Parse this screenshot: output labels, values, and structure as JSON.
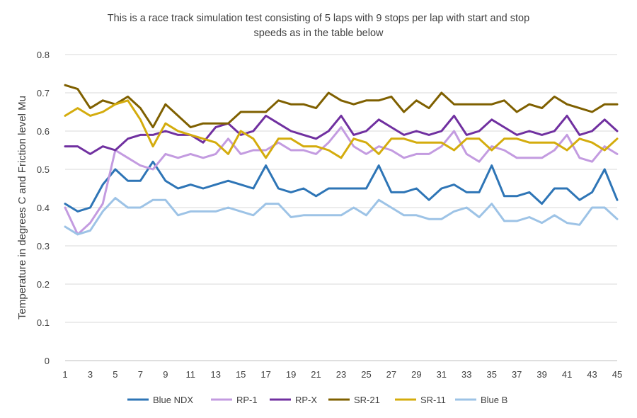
{
  "chart_data": {
    "type": "line",
    "title_lines": [
      "This is a race track simulation test consisting of 5 laps with 9 stops per lap with start and stop",
      "speeds as in the table below"
    ],
    "xlabel": "",
    "ylabel": "Temperature in degrees C and Friction level Mu",
    "ylim": [
      0,
      0.8
    ],
    "yticks": [
      "0",
      "0.1",
      "0.2",
      "0.3",
      "0.4",
      "0.5",
      "0.6",
      "0.7",
      "0.8"
    ],
    "x_range": [
      1,
      45
    ],
    "xticks": [
      "1",
      "3",
      "5",
      "7",
      "9",
      "11",
      "13",
      "15",
      "17",
      "19",
      "21",
      "23",
      "25",
      "27",
      "29",
      "31",
      "33",
      "35",
      "37",
      "39",
      "41",
      "43",
      "45"
    ],
    "grid": true,
    "legend_position": "bottom",
    "series": [
      {
        "name": "Blue NDX",
        "color": "#2E75B6",
        "values": [
          0.41,
          0.39,
          0.4,
          0.46,
          0.5,
          0.47,
          0.47,
          0.52,
          0.47,
          0.45,
          0.46,
          0.45,
          0.46,
          0.47,
          0.46,
          0.45,
          0.51,
          0.45,
          0.44,
          0.45,
          0.43,
          0.45,
          0.45,
          0.45,
          0.45,
          0.51,
          0.44,
          0.44,
          0.45,
          0.42,
          0.45,
          0.46,
          0.44,
          0.44,
          0.51,
          0.43,
          0.43,
          0.44,
          0.41,
          0.45,
          0.45,
          0.42,
          0.44,
          0.5,
          0.42
        ]
      },
      {
        "name": "RP-1",
        "color": "#C39BE0",
        "values": [
          0.4,
          0.33,
          0.36,
          0.41,
          0.55,
          0.53,
          0.51,
          0.5,
          0.54,
          0.53,
          0.54,
          0.53,
          0.54,
          0.58,
          0.54,
          0.55,
          0.55,
          0.57,
          0.55,
          0.55,
          0.54,
          0.57,
          0.61,
          0.56,
          0.54,
          0.56,
          0.55,
          0.53,
          0.54,
          0.54,
          0.56,
          0.6,
          0.54,
          0.52,
          0.56,
          0.55,
          0.53,
          0.53,
          0.53,
          0.55,
          0.59,
          0.53,
          0.52,
          0.56,
          0.54
        ]
      },
      {
        "name": "RP-X",
        "color": "#7030A0",
        "values": [
          0.56,
          0.56,
          0.54,
          0.56,
          0.55,
          0.58,
          0.59,
          0.59,
          0.6,
          0.59,
          0.59,
          0.57,
          0.61,
          0.62,
          0.59,
          0.6,
          0.64,
          0.62,
          0.6,
          0.59,
          0.58,
          0.6,
          0.64,
          0.59,
          0.6,
          0.63,
          0.61,
          0.59,
          0.6,
          0.59,
          0.6,
          0.64,
          0.59,
          0.6,
          0.63,
          0.61,
          0.59,
          0.6,
          0.59,
          0.6,
          0.64,
          0.59,
          0.6,
          0.63,
          0.6
        ]
      },
      {
        "name": "SR-21",
        "color": "#7F6000",
        "values": [
          0.72,
          0.71,
          0.66,
          0.68,
          0.67,
          0.69,
          0.66,
          0.61,
          0.67,
          0.64,
          0.61,
          0.62,
          0.62,
          0.62,
          0.65,
          0.65,
          0.65,
          0.68,
          0.67,
          0.67,
          0.66,
          0.7,
          0.68,
          0.67,
          0.68,
          0.68,
          0.69,
          0.65,
          0.68,
          0.66,
          0.7,
          0.67,
          0.67,
          0.67,
          0.67,
          0.68,
          0.65,
          0.67,
          0.66,
          0.69,
          0.67,
          0.66,
          0.65,
          0.67,
          0.67
        ]
      },
      {
        "name": "SR-11",
        "color": "#D4AC0D",
        "values": [
          0.64,
          0.66,
          0.64,
          0.65,
          0.67,
          0.68,
          0.63,
          0.56,
          0.62,
          0.6,
          0.59,
          0.58,
          0.57,
          0.54,
          0.6,
          0.58,
          0.53,
          0.58,
          0.58,
          0.56,
          0.56,
          0.55,
          0.53,
          0.58,
          0.57,
          0.54,
          0.58,
          0.58,
          0.57,
          0.57,
          0.57,
          0.55,
          0.58,
          0.58,
          0.55,
          0.58,
          0.58,
          0.57,
          0.57,
          0.57,
          0.55,
          0.58,
          0.57,
          0.55,
          0.58
        ]
      },
      {
        "name": "Blue B",
        "color": "#9DC3E6",
        "values": [
          0.35,
          0.33,
          0.34,
          0.39,
          0.425,
          0.4,
          0.4,
          0.42,
          0.42,
          0.38,
          0.39,
          0.39,
          0.39,
          0.4,
          0.39,
          0.38,
          0.41,
          0.41,
          0.375,
          0.38,
          0.38,
          0.38,
          0.38,
          0.4,
          0.38,
          0.42,
          0.4,
          0.38,
          0.38,
          0.37,
          0.37,
          0.39,
          0.4,
          0.375,
          0.41,
          0.365,
          0.365,
          0.375,
          0.36,
          0.38,
          0.36,
          0.355,
          0.4,
          0.4,
          0.37
        ]
      }
    ]
  }
}
